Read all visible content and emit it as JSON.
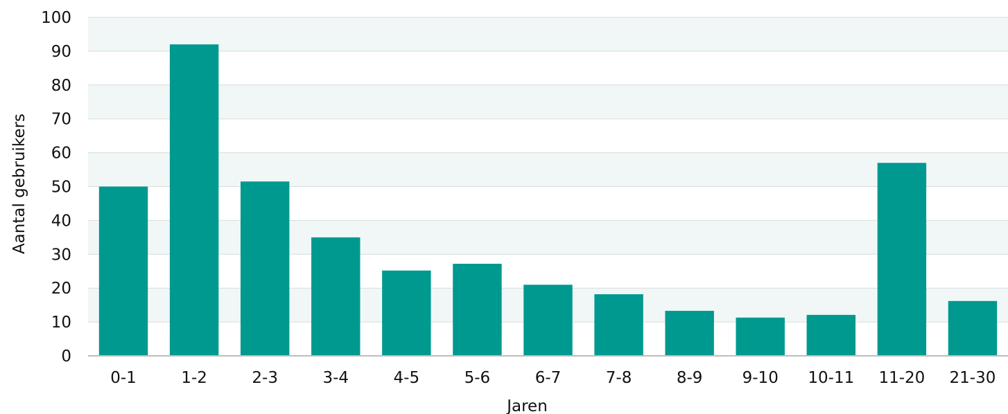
{
  "chart_data": {
    "type": "bar",
    "categories": [
      "0-1",
      "1-2",
      "2-3",
      "3-4",
      "4-5",
      "5-6",
      "6-7",
      "7-8",
      "8-9",
      "9-10",
      "10-11",
      "11-20",
      "21-30"
    ],
    "values": [
      50,
      92,
      51.5,
      35,
      25.2,
      27.2,
      21,
      18.2,
      13.3,
      11.3,
      12.1,
      57,
      16.2
    ],
    "xlabel": "Jaren",
    "ylabel": "Aantal gebruikers",
    "ylim": [
      0,
      100
    ],
    "yticks": [
      0,
      10,
      20,
      30,
      40,
      50,
      60,
      70,
      80,
      90,
      100
    ],
    "grid": true,
    "bands": "alternating light shading between gridlines",
    "colors": {
      "bar": "#009990",
      "band": "#f1f7f7",
      "grid": "#d7dcdc",
      "axis": "#bdbdbd"
    }
  }
}
